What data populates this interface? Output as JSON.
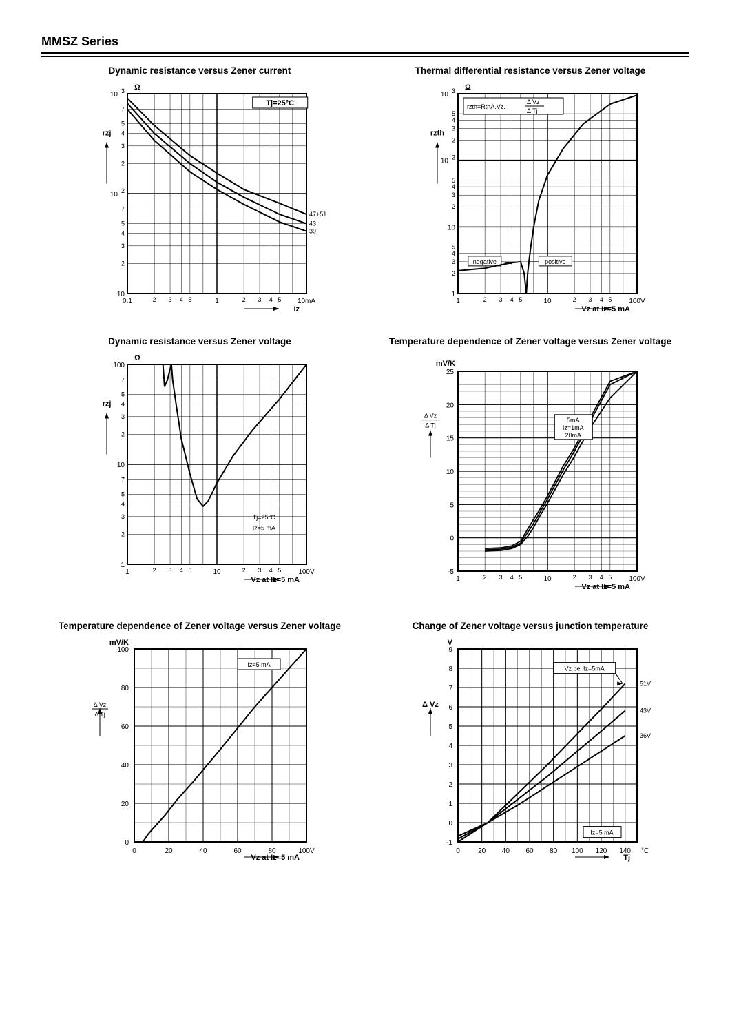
{
  "header": {
    "title": "MMSZ Series"
  },
  "chart1": {
    "title": "Dynamic resistance versus Zener current",
    "type": "line",
    "xlabel": "Iz",
    "ylabel": "rzj",
    "yunit": "Ω",
    "xscale": "log",
    "yscale": "log",
    "xlim": [
      0.1,
      10
    ],
    "ylim": [
      10,
      1000
    ],
    "xticks_decade": [
      0.1,
      1,
      10
    ],
    "xticks_minor_labels": [
      "2",
      "3",
      "4",
      "5"
    ],
    "yticks_decade": [
      "10",
      "10^2",
      "10^3"
    ],
    "yticks_minor_labels": [
      "2",
      "3",
      "4",
      "5",
      "7"
    ],
    "annot": "Tj=25°C",
    "xunit_end": "10mA",
    "series": [
      {
        "name": "47+51",
        "label": "47+51",
        "color": "#000000",
        "width": 2,
        "data": [
          [
            0.1,
            900
          ],
          [
            0.2,
            480
          ],
          [
            0.5,
            240
          ],
          [
            1,
            160
          ],
          [
            2,
            110
          ],
          [
            5,
            80
          ],
          [
            10,
            62
          ]
        ]
      },
      {
        "name": "43",
        "label": "43",
        "color": "#000000",
        "width": 2,
        "data": [
          [
            0.1,
            800
          ],
          [
            0.2,
            400
          ],
          [
            0.5,
            200
          ],
          [
            1,
            130
          ],
          [
            2,
            92
          ],
          [
            5,
            62
          ],
          [
            10,
            50
          ]
        ]
      },
      {
        "name": "39",
        "label": "39",
        "color": "#000000",
        "width": 2,
        "data": [
          [
            0.1,
            700
          ],
          [
            0.2,
            340
          ],
          [
            0.5,
            165
          ],
          [
            1,
            110
          ],
          [
            2,
            78
          ],
          [
            5,
            52
          ],
          [
            10,
            42
          ]
        ]
      }
    ],
    "grid_color": "#000000",
    "background_color": "#ffffff",
    "axis_font": 9
  },
  "chart2": {
    "title": "Thermal differential resistance versus Zener voltage",
    "type": "line",
    "xlabel": "Vz at Iz=5 mA",
    "ylabel": "rzth",
    "yunit": "Ω",
    "xscale": "log",
    "yscale": "log",
    "xlim": [
      1,
      100
    ],
    "ylim": [
      1,
      1000
    ],
    "xticks_decade": [
      1,
      10,
      100
    ],
    "xunit_end": "100V",
    "yticks_decade_labels": [
      "1",
      "10",
      "10^2",
      "10^3"
    ],
    "yticks_minor_labels": [
      "2",
      "3",
      "4",
      "5"
    ],
    "annotation_formula": "rzth=RthA.Vz. ΔVz/ΔTj",
    "annot_neg": "negative",
    "annot_pos": "positive",
    "series": [
      {
        "name": "rzth-curve",
        "color": "#000000",
        "width": 2,
        "neg_data": [
          [
            1,
            2.2
          ],
          [
            2,
            2.4
          ],
          [
            3,
            2.7
          ],
          [
            4,
            2.9
          ],
          [
            5,
            3.0
          ],
          [
            5.5,
            2.0
          ],
          [
            5.8,
            1.0
          ]
        ],
        "pos_data": [
          [
            5.8,
            1.0
          ],
          [
            6,
            2.0
          ],
          [
            6.2,
            3.0
          ],
          [
            6.5,
            5.0
          ],
          [
            7,
            10
          ],
          [
            8,
            25
          ],
          [
            10,
            60
          ],
          [
            15,
            150
          ],
          [
            25,
            350
          ],
          [
            50,
            700
          ],
          [
            100,
            950
          ]
        ]
      }
    ],
    "grid_color": "#000000"
  },
  "chart3": {
    "title": "Dynamic resistance versus Zener voltage",
    "type": "line",
    "xlabel": "Vz at Iz=5 mA",
    "ylabel": "rzj",
    "yunit": "Ω",
    "xscale": "log",
    "yscale": "log",
    "xlim": [
      1,
      100
    ],
    "ylim": [
      1,
      100
    ],
    "xticks_decade": [
      1,
      10,
      100
    ],
    "xunit_end": "100V",
    "yticks_decade": [
      "1",
      "10",
      "100"
    ],
    "yticks_minor_labels": [
      "2",
      "3",
      "4",
      "5",
      "7"
    ],
    "annot1": "Tj=25°C",
    "annot2": "Iz=5 mA",
    "series": [
      {
        "name": "rzj-vs-vz",
        "color": "#000000",
        "width": 2,
        "data": [
          [
            2.5,
            100
          ],
          [
            2.6,
            60
          ],
          [
            2.8,
            70
          ],
          [
            3.0,
            90
          ],
          [
            3.1,
            100
          ],
          [
            3.2,
            70
          ],
          [
            3.5,
            40
          ],
          [
            4,
            18
          ],
          [
            5,
            8
          ],
          [
            6,
            4.5
          ],
          [
            7,
            3.8
          ],
          [
            8,
            4.3
          ],
          [
            10,
            6.5
          ],
          [
            15,
            12
          ],
          [
            25,
            22
          ],
          [
            50,
            45
          ],
          [
            100,
            100
          ]
        ]
      }
    ],
    "grid_color": "#000000"
  },
  "chart4": {
    "title": "Temperature dependence of Zener voltage versus Zener voltage",
    "type": "line",
    "xlabel": "Vz at Iz=5 mA",
    "ylabel": "ΔVz/ΔTj",
    "yunit": "mV/K",
    "xscale": "log",
    "yscale": "linear",
    "xlim": [
      1,
      100
    ],
    "ylim": [
      -5,
      25
    ],
    "xticks_decade": [
      1,
      10,
      100
    ],
    "xunit_end": "100V",
    "yticks": [
      -5,
      0,
      5,
      10,
      15,
      20,
      25
    ],
    "series_labels": [
      "5mA",
      "Iz=1mA",
      "20mA"
    ],
    "series": [
      {
        "name": "5mA",
        "color": "#000000",
        "width": 1.8,
        "data": [
          [
            2,
            -1.8
          ],
          [
            3,
            -1.7
          ],
          [
            4,
            -1.4
          ],
          [
            5,
            -0.8
          ],
          [
            6,
            0.8
          ],
          [
            7,
            2.2
          ],
          [
            8,
            3.5
          ],
          [
            10,
            5.8
          ],
          [
            15,
            10.2
          ],
          [
            20,
            13
          ],
          [
            30,
            17.5
          ],
          [
            50,
            23
          ],
          [
            100,
            25
          ]
        ]
      },
      {
        "name": "1mA",
        "color": "#000000",
        "width": 1.8,
        "data": [
          [
            2,
            -2.0
          ],
          [
            3,
            -1.9
          ],
          [
            4,
            -1.6
          ],
          [
            5,
            -1.0
          ],
          [
            6,
            0.2
          ],
          [
            7,
            1.6
          ],
          [
            8,
            3.0
          ],
          [
            10,
            5.2
          ],
          [
            15,
            9.5
          ],
          [
            20,
            12.2
          ],
          [
            30,
            16.5
          ],
          [
            50,
            21
          ],
          [
            100,
            25
          ]
        ]
      },
      {
        "name": "20mA",
        "color": "#000000",
        "width": 1.8,
        "data": [
          [
            2,
            -1.6
          ],
          [
            3,
            -1.5
          ],
          [
            4,
            -1.2
          ],
          [
            5,
            -0.5
          ],
          [
            6,
            1.3
          ],
          [
            7,
            2.8
          ],
          [
            8,
            4.0
          ],
          [
            10,
            6.3
          ],
          [
            15,
            10.8
          ],
          [
            20,
            13.5
          ],
          [
            30,
            18
          ],
          [
            50,
            23.5
          ],
          [
            100,
            25
          ]
        ]
      }
    ],
    "grid_color": "#000000"
  },
  "chart5": {
    "title": "Temperature dependence of Zener voltage versus Zener voltage",
    "type": "line",
    "xlabel": "Vz at Iz=5 mA",
    "ylabel": "ΔVz/ΔTj",
    "yunit": "mV/K",
    "xscale": "linear",
    "yscale": "linear",
    "xlim": [
      0,
      100
    ],
    "ylim": [
      0,
      100
    ],
    "xticks": [
      0,
      20,
      40,
      60,
      80,
      100
    ],
    "xunit_end": "100V",
    "yticks": [
      0,
      20,
      40,
      60,
      80,
      100
    ],
    "annot": "Iz=5 mA",
    "series": [
      {
        "name": "tc-linear",
        "color": "#000000",
        "width": 2,
        "data": [
          [
            1,
            0
          ],
          [
            5,
            0
          ],
          [
            8,
            4
          ],
          [
            12,
            8
          ],
          [
            18,
            14
          ],
          [
            25,
            22
          ],
          [
            35,
            32
          ],
          [
            50,
            48
          ],
          [
            70,
            70
          ],
          [
            100,
            100
          ]
        ]
      }
    ],
    "grid_color": "#000000"
  },
  "chart6": {
    "title": "Change of Zener voltage versus junction temperature",
    "type": "line",
    "xlabel": "Tj",
    "ylabel": "ΔVz",
    "yunit": "V",
    "xscale": "linear",
    "yscale": "linear",
    "xlim": [
      0,
      150
    ],
    "ylim": [
      -1,
      9
    ],
    "xticks": [
      0,
      20,
      40,
      60,
      80,
      100,
      120,
      140
    ],
    "xunit_end": "140 °C",
    "yticks": [
      -1,
      0,
      1,
      2,
      3,
      4,
      5,
      6,
      7,
      8,
      9
    ],
    "annot": "Iz=5 mA",
    "annot2": "Vz bei Iz=5mA",
    "series": [
      {
        "name": "51V",
        "label": "51V",
        "color": "#000000",
        "width": 2,
        "data": [
          [
            0,
            -1
          ],
          [
            25,
            0
          ],
          [
            50,
            1.5
          ],
          [
            75,
            3.0
          ],
          [
            100,
            4.6
          ],
          [
            125,
            6.2
          ],
          [
            140,
            7.2
          ]
        ]
      },
      {
        "name": "43V",
        "label": "43V",
        "color": "#000000",
        "width": 2,
        "data": [
          [
            0,
            -0.85
          ],
          [
            25,
            0
          ],
          [
            50,
            1.2
          ],
          [
            75,
            2.4
          ],
          [
            100,
            3.7
          ],
          [
            125,
            5.0
          ],
          [
            140,
            5.8
          ]
        ]
      },
      {
        "name": "36V",
        "label": "36V",
        "color": "#000000",
        "width": 2,
        "data": [
          [
            0,
            -0.7
          ],
          [
            25,
            0
          ],
          [
            50,
            0.9
          ],
          [
            75,
            1.9
          ],
          [
            100,
            2.9
          ],
          [
            125,
            3.9
          ],
          [
            140,
            4.5
          ]
        ]
      }
    ],
    "grid_color": "#000000"
  }
}
